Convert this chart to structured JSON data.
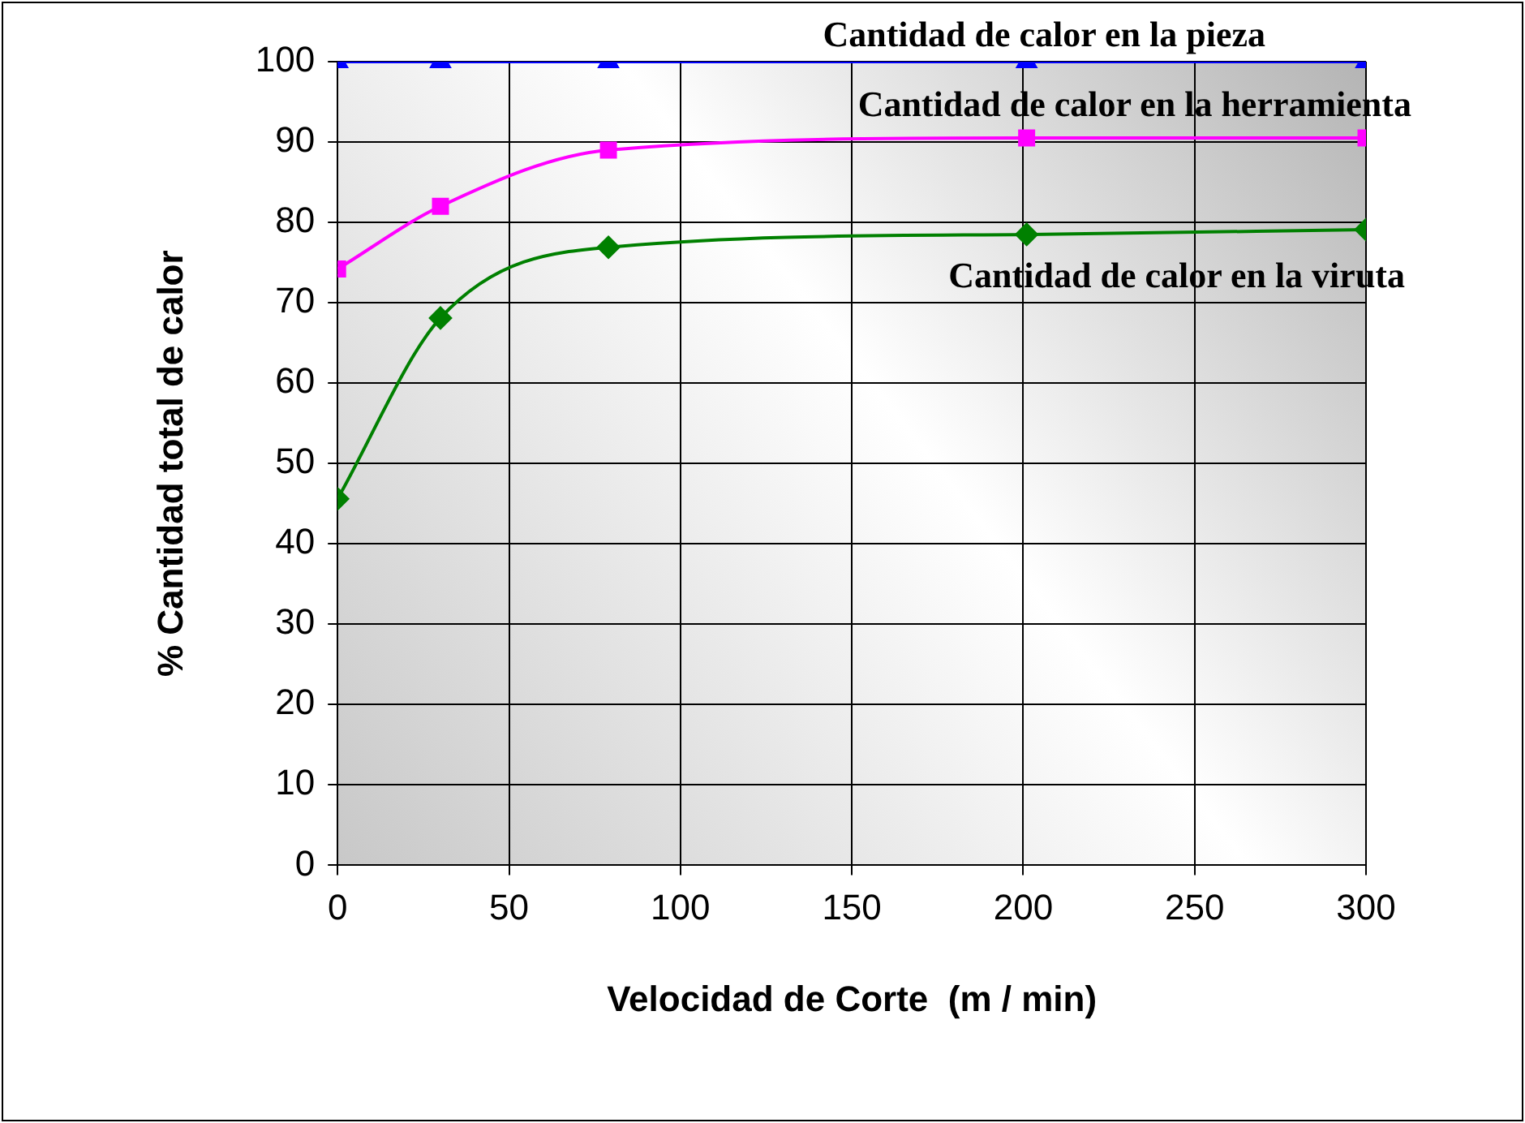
{
  "chart_data": {
    "type": "line",
    "xlabel": "Velocidad de Corte  (m / min)",
    "ylabel": "% Cantidad total de calor",
    "x": [
      0,
      30,
      79,
      201,
      300
    ],
    "series": [
      {
        "name": "Cantidad de calor en la pieza",
        "color": "#0000ff",
        "marker": "triangle",
        "values": [
          100,
          100,
          100,
          100,
          100
        ]
      },
      {
        "name": "Cantidad de calor en la herramienta",
        "color": "#ff00ff",
        "marker": "square",
        "values": [
          74.2,
          82,
          89,
          90.5,
          90.5
        ]
      },
      {
        "name": "Cantidad de calor en la viruta",
        "color": "#008000",
        "marker": "diamond",
        "values": [
          45.6,
          68.1,
          76.9,
          78.5,
          79.1
        ]
      }
    ],
    "xlim": [
      0,
      300
    ],
    "xticks": [
      0,
      50,
      100,
      150,
      200,
      250,
      300
    ],
    "ylim": [
      0,
      100
    ],
    "yticks": [
      0,
      10,
      20,
      30,
      40,
      50,
      60,
      70,
      80,
      90,
      100
    ],
    "grid": true,
    "legend": false
  }
}
